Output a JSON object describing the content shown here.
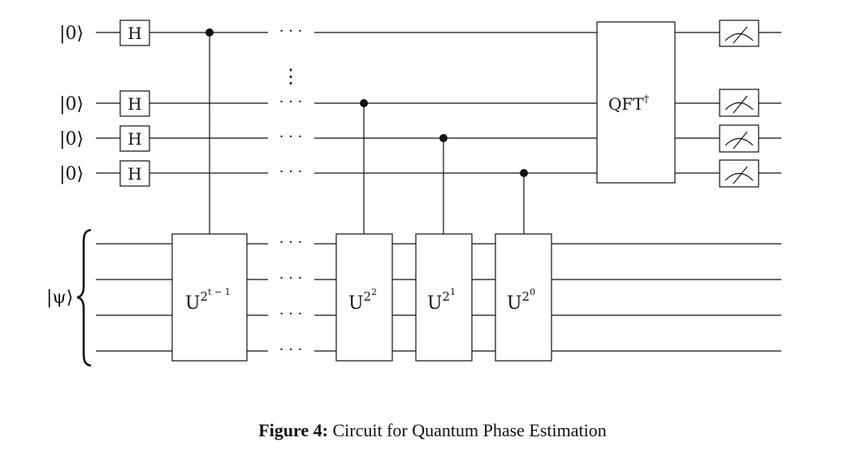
{
  "figure": {
    "label": "Figure 4:",
    "caption": "Circuit for Quantum Phase Estimation"
  },
  "circuit": {
    "ancilla_inputs": [
      "|0⟩",
      "|0⟩",
      "|0⟩",
      "|0⟩"
    ],
    "hadamard_label": "H",
    "vertical_dots": "⋮",
    "horizontal_dots": "· · ·",
    "qft_label": "QFT",
    "qft_sup": "†",
    "target_label": "|ψ⟩",
    "controlled_unitaries": [
      {
        "base": "U",
        "exp": "2",
        "exp2": "t − 1"
      },
      {
        "base": "U",
        "exp": "2",
        "exp2": "2"
      },
      {
        "base": "U",
        "exp": "2",
        "exp2": "1"
      },
      {
        "base": "U",
        "exp": "2",
        "exp2": "0"
      }
    ]
  }
}
